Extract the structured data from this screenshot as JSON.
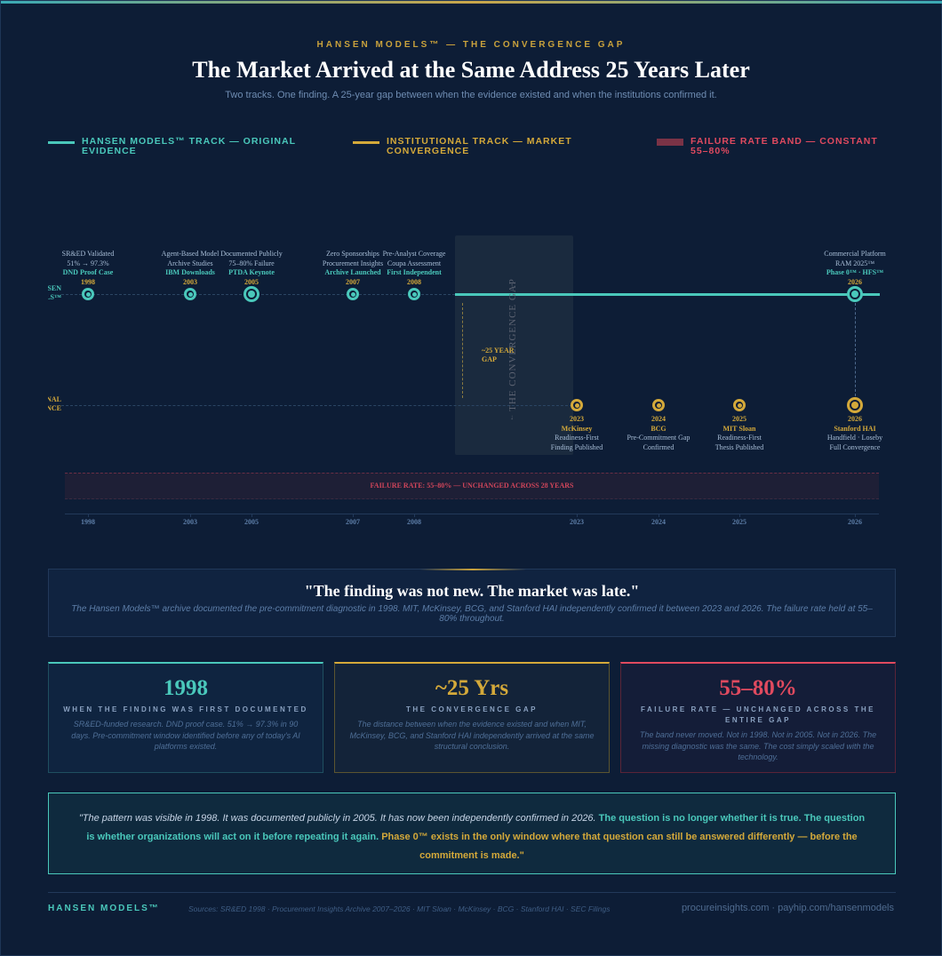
{
  "header": {
    "eyebrow": "HANSEN MODELS™ — THE CONVERGENCE GAP",
    "title": "The Market Arrived at the Same Address 25 Years Later",
    "subtitle": "Two tracks. One finding. A 25-year gap between when the evidence existed and when the institutions confirmed it."
  },
  "legend": [
    {
      "label": "HANSEN MODELS™ TRACK — ORIGINAL EVIDENCE",
      "color": "#4ac8bb"
    },
    {
      "label": "INSTITUTIONAL TRACK — MARKET CONVERGENCE",
      "color": "#d4a93a"
    },
    {
      "label": "FAILURE RATE BAND — CONSTANT 55–80%",
      "color": "#e04a5f"
    }
  ],
  "chart_data": {
    "type": "timeline",
    "tracks": {
      "hansen": {
        "label_lines": [
          "HANSEN",
          "MODELS™"
        ]
      },
      "institutional": {
        "label_lines": [
          "INSTITUTIONAL",
          "CONVERGENCE"
        ]
      }
    },
    "hansen_events": [
      {
        "year": "1998",
        "lines": [
          "SR&ED Validated",
          "51% → 97.3%"
        ],
        "highlight": "DND Proof Case"
      },
      {
        "year": "2003",
        "lines": [
          "Agent-Based Model",
          "Archive Studies"
        ],
        "highlight": "IBM Downloads"
      },
      {
        "year": "2005",
        "lines": [
          "Documented Publicly",
          "75–80% Failure"
        ],
        "highlight": "PTDA Keynote",
        "major": true
      },
      {
        "year": "2007",
        "lines": [
          "Zero Sponsorships",
          "Procurement Insights"
        ],
        "highlight": "Archive Launched"
      },
      {
        "year": "2008",
        "lines": [
          "Pre-Analyst Coverage",
          "Coupa Assessment"
        ],
        "highlight": "First Independent"
      },
      {
        "year": "2026",
        "lines": [
          "Commercial Platform",
          "RAM 2025™"
        ],
        "highlight": "Phase 0™ · HFS™",
        "major": true
      }
    ],
    "institutional_events": [
      {
        "year": "2023",
        "org": "McKinsey",
        "lines": [
          "Readiness-First",
          "Finding Published"
        ]
      },
      {
        "year": "2024",
        "org": "BCG",
        "lines": [
          "Pre-Commitment Gap",
          "Confirmed"
        ]
      },
      {
        "year": "2025",
        "org": "MIT Sloan",
        "lines": [
          "Readiness-First",
          "Thesis Published"
        ]
      },
      {
        "year": "2026",
        "org": "Stanford HAI",
        "lines": [
          "Handfield · Loseby",
          "Full Convergence"
        ],
        "major": true
      }
    ],
    "gap": {
      "label": "THE CONVERGENCE GAP",
      "span_label": [
        "~25 YEAR",
        "GAP"
      ]
    },
    "failure_band": {
      "label": "FAILURE RATE: 55–80% — UNCHANGED ACROSS 28 YEARS",
      "min": 55,
      "max": 80
    },
    "axis_ticks": [
      "1998",
      "2003",
      "2005",
      "2007",
      "2008",
      "2023",
      "2024",
      "2025",
      "2026"
    ]
  },
  "quote": {
    "text": "\"The finding was not new. The market was late.\"",
    "sub": "The Hansen Models™ archive documented the pre-commitment diagnostic in 1998. MIT, McKinsey, BCG, and Stanford HAI independently confirmed it between 2023 and 2026. The failure rate held at 55–80% throughout."
  },
  "cards": [
    {
      "value": "1998",
      "caption": "WHEN THE FINDING WAS FIRST DOCUMENTED",
      "desc": "SR&ED-funded research. DND proof case. 51% → 97.3% in 90 days. Pre-commitment window identified before any of today's AI platforms existed.",
      "color": "#4ac8bb"
    },
    {
      "value": "~25 Yrs",
      "caption": "THE CONVERGENCE GAP",
      "desc": "The distance between when the evidence existed and when MIT, McKinsey, BCG, and Stanford HAI independently arrived at the same structural conclusion.",
      "color": "#d4a93a"
    },
    {
      "value": "55–80%",
      "caption": "FAILURE RATE — UNCHANGED ACROSS THE ENTIRE GAP",
      "desc": "The band never moved. Not in 1998. Not in 2005. Not in 2026. The missing diagnostic was the same. The cost simply scaled with the technology.",
      "color": "#e04a5f"
    }
  ],
  "closing": {
    "part1": "\"The pattern was visible in 1998. It was documented publicly in 2005. It has now been independently confirmed in 2026. ",
    "part2": "The question is no longer whether it is true. The question is whether organizations will act on it before repeating it again. ",
    "part3": "Phase 0™ exists in the only window where that question can still be answered differently — before the commitment is made.\""
  },
  "footer": {
    "brand": "HANSEN MODELS™",
    "sources": "Sources: SR&ED 1998 · Procurement Insights Archive 2007–2026 · MIT Sloan · McKinsey · BCG · Stanford HAI · SEC Filings",
    "links": "procureinsights.com · payhip.com/hansenmodels"
  }
}
